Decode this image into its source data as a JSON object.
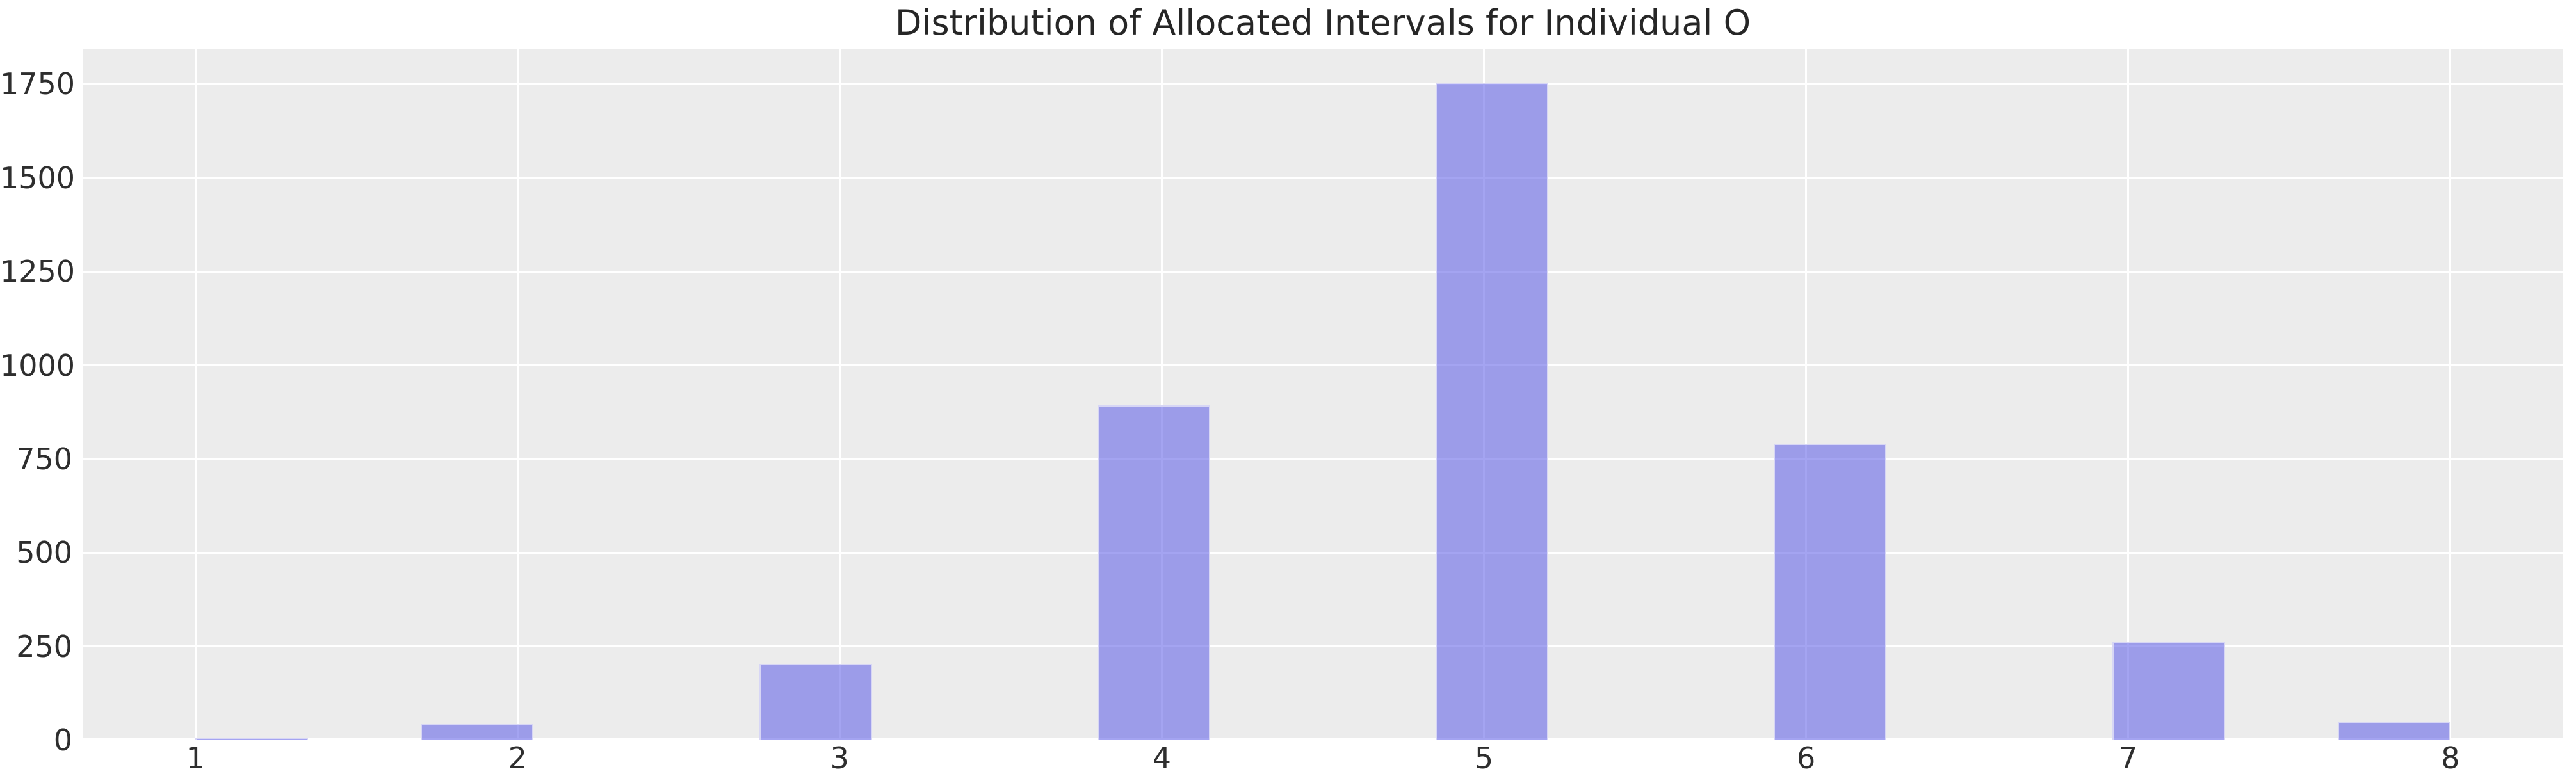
{
  "chart_data": {
    "type": "bar",
    "subtype": "histogram",
    "title": "Distribution of Allocated Intervals for Individual O",
    "xlabel": "",
    "ylabel": "",
    "categories": [
      "1",
      "2",
      "3",
      "4",
      "5",
      "6",
      "7",
      "8"
    ],
    "tick_positions": [
      1,
      2,
      3,
      4,
      5,
      6,
      7,
      8
    ],
    "values": [
      5,
      42,
      203,
      893,
      1755,
      791,
      262,
      47
    ],
    "bin_left_edges": [
      1.0,
      1.7,
      2.75,
      3.8,
      4.85,
      5.9,
      6.95,
      7.65
    ],
    "bin_width": 0.35,
    "yticks": [
      0,
      250,
      500,
      750,
      1000,
      1250,
      1500,
      1750
    ],
    "xlim": [
      0.65,
      8.35
    ],
    "ylim": [
      0,
      1843
    ],
    "grid": true,
    "legend": false,
    "colors": {
      "bar_fill": "rgba(104,104,231,0.6)",
      "bar_fill_flat": "#9d9de9",
      "bar_edge": "#d7d6f5",
      "axes_background": "#ececec",
      "gridline": "#ffffff",
      "tick_label": "#2e2e2e",
      "title": "#262626"
    }
  }
}
